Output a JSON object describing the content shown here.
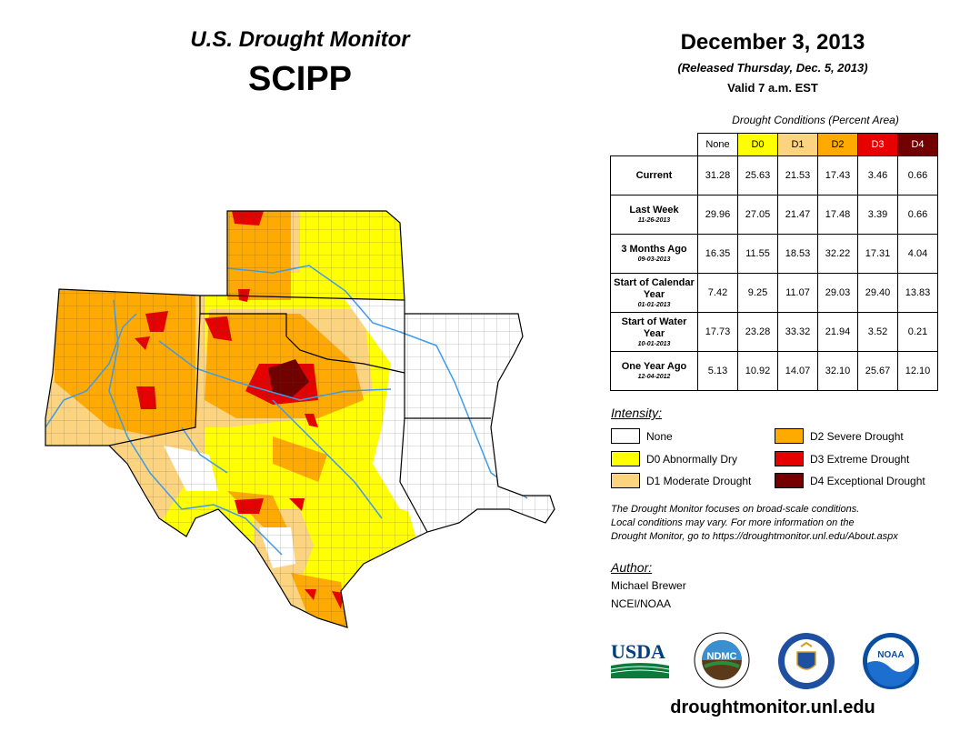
{
  "header": {
    "title": "U.S. Drought Monitor",
    "region": "SCIPP",
    "date": "December 3, 2013",
    "released": "(Released Thursday, Dec. 5, 2013)",
    "valid": "Valid 7 a.m. EST"
  },
  "table": {
    "caption": "Drought Conditions (Percent Area)",
    "columns": [
      "None",
      "D0",
      "D1",
      "D2",
      "D3",
      "D4"
    ],
    "rows": [
      {
        "label": "Current",
        "sub": "",
        "values": [
          "31.28",
          "25.63",
          "21.53",
          "17.43",
          "3.46",
          "0.66"
        ]
      },
      {
        "label": "Last Week",
        "sub": "11-26-2013",
        "values": [
          "29.96",
          "27.05",
          "21.47",
          "17.48",
          "3.39",
          "0.66"
        ]
      },
      {
        "label": "3 Months Ago",
        "sub": "09-03-2013",
        "values": [
          "16.35",
          "11.55",
          "18.53",
          "32.22",
          "17.31",
          "4.04"
        ]
      },
      {
        "label": "Start of Calendar Year",
        "sub": "01-01-2013",
        "values": [
          "7.42",
          "9.25",
          "11.07",
          "29.03",
          "29.40",
          "13.83"
        ]
      },
      {
        "label": "Start of Water Year",
        "sub": "10-01-2013",
        "values": [
          "17.73",
          "23.28",
          "33.32",
          "21.94",
          "3.52",
          "0.21"
        ]
      },
      {
        "label": "One Year Ago",
        "sub": "12-04-2012",
        "values": [
          "5.13",
          "10.92",
          "14.07",
          "32.10",
          "25.67",
          "12.10"
        ]
      }
    ]
  },
  "legend": {
    "title": "Intensity:",
    "items": [
      {
        "label": "None",
        "color": "#ffffff"
      },
      {
        "label": "D0 Abnormally Dry",
        "color": "#ffff00"
      },
      {
        "label": "D1 Moderate Drought",
        "color": "#fcd37f"
      },
      {
        "label": "D2 Severe Drought",
        "color": "#ffaa00"
      },
      {
        "label": "D3 Extreme Drought",
        "color": "#e60000"
      },
      {
        "label": "D4 Exceptional Drought",
        "color": "#730000"
      }
    ]
  },
  "note": {
    "line1": "The Drought Monitor focuses on broad-scale conditions.",
    "line2": "Local conditions may vary. For more information on the",
    "line3": "Drought Monitor, go to https://droughtmonitor.unl.edu/About.aspx"
  },
  "author": {
    "title": "Author:",
    "name": "Michael Brewer",
    "org": "NCEI/NOAA"
  },
  "logos": {
    "usda": "USDA",
    "ndmc": "NDMC",
    "noaa": "NOAA"
  },
  "footer": {
    "url": "droughtmonitor.unl.edu"
  }
}
